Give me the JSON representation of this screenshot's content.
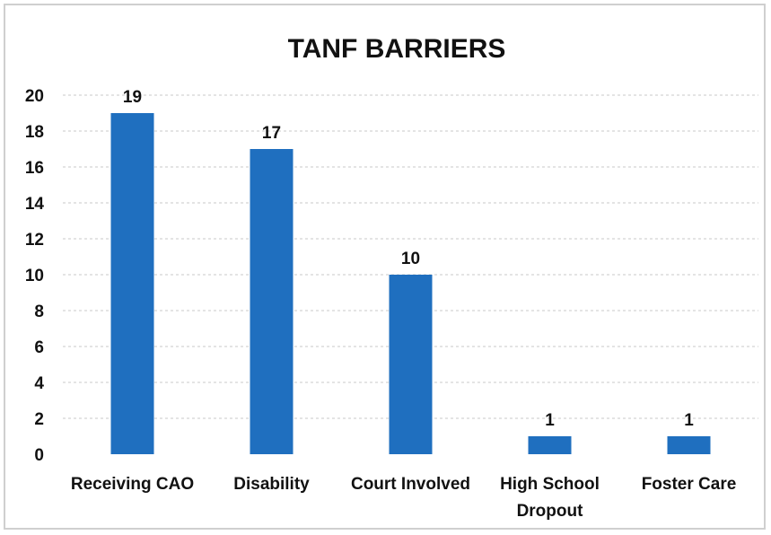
{
  "chart_data": {
    "type": "bar",
    "title": "TANF BARRIERS",
    "categories": [
      [
        "Receiving CAO"
      ],
      [
        "Disability"
      ],
      [
        "Court Involved"
      ],
      [
        "High School",
        "Dropout"
      ],
      [
        "Foster Care"
      ]
    ],
    "values": [
      19,
      17,
      10,
      1,
      1
    ],
    "data_labels": [
      "19",
      "17",
      "10",
      "1",
      "1"
    ],
    "ylim": [
      0,
      20
    ],
    "yticks": [
      0,
      2,
      4,
      6,
      8,
      10,
      12,
      14,
      16,
      18,
      20
    ],
    "grid": true,
    "legend": "none",
    "bar_color": "#1f6fbf"
  }
}
